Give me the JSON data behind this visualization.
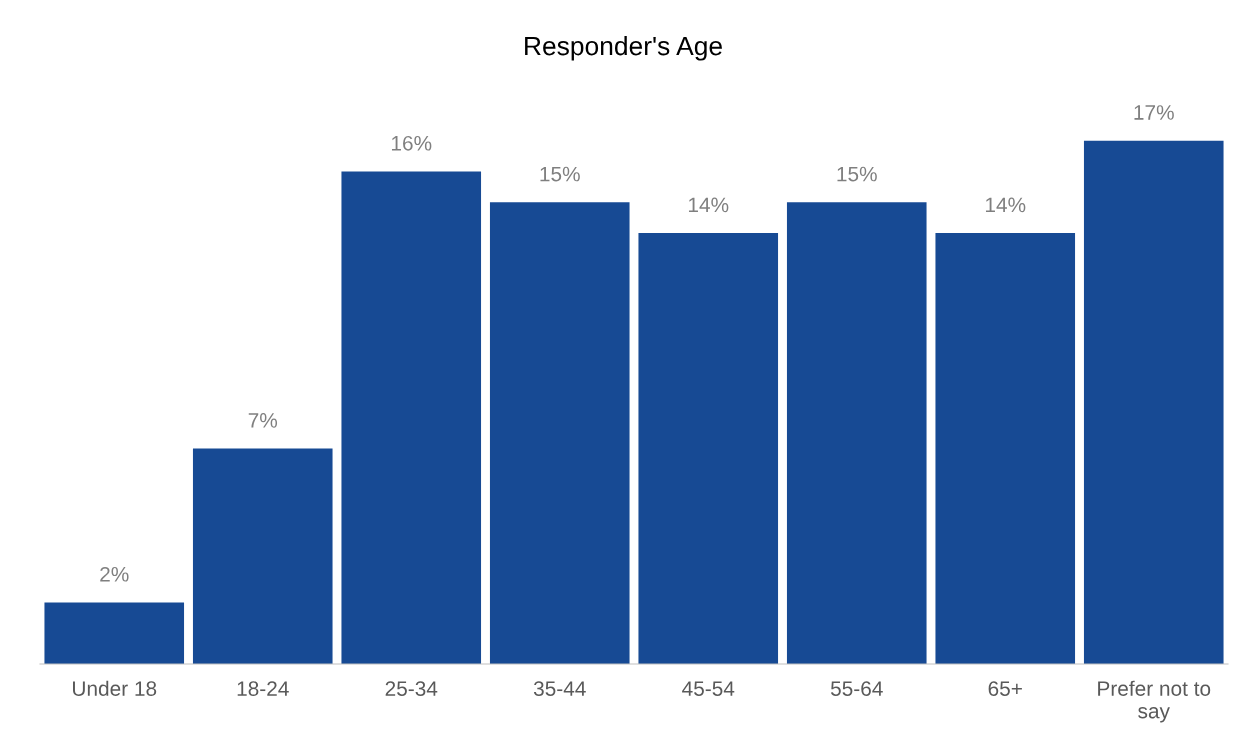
{
  "chart_data": {
    "type": "bar",
    "title": "Responder's Age",
    "categories": [
      "Under 18",
      "18-24",
      "25-34",
      "35-44",
      "45-54",
      "55-64",
      "65+",
      "Prefer not to say"
    ],
    "values": [
      2,
      7,
      16,
      15,
      14,
      15,
      14,
      17
    ],
    "color": "#174a94",
    "value_labels": [
      "2%",
      "7%",
      "16%",
      "15%",
      "14%",
      "15%",
      "14%",
      "17%"
    ],
    "grid": false,
    "legend": false
  }
}
